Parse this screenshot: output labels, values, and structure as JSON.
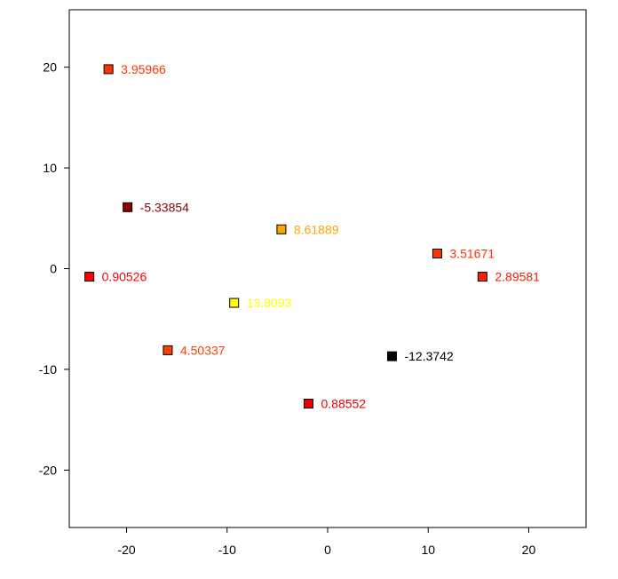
{
  "chart_data": {
    "type": "scatter",
    "title": "",
    "xlabel": "",
    "ylabel": "",
    "xlim": [
      -25.7,
      25.7
    ],
    "ylim": [
      -25.7,
      25.7
    ],
    "grid": false,
    "legend": "none",
    "x_ticks": [
      -20,
      -10,
      0,
      10,
      20
    ],
    "y_ticks": [
      20,
      10,
      0,
      -10,
      -20
    ],
    "x_tick_labels": [
      "-20",
      "-10",
      "0",
      "10",
      "20"
    ],
    "y_tick_labels": [
      "20",
      "10",
      "0",
      "-10",
      "-20"
    ],
    "points": [
      {
        "x": -21.8,
        "y": 19.8,
        "value": 3.95966,
        "label": "3.95966",
        "color": "#ff3300"
      },
      {
        "x": -19.9,
        "y": 6.1,
        "value": -5.33854,
        "label": "-5.33854",
        "color": "#8b0000"
      },
      {
        "x": -4.6,
        "y": 3.9,
        "value": 8.61889,
        "label": "8.61889",
        "color": "#ffa500"
      },
      {
        "x": 10.9,
        "y": 1.5,
        "value": 3.51671,
        "label": "3.51671",
        "color": "#ff3300"
      },
      {
        "x": 15.4,
        "y": -0.8,
        "value": 2.89581,
        "label": "2.89581",
        "color": "#ff1a00"
      },
      {
        "x": -23.7,
        "y": -0.8,
        "value": 0.90526,
        "label": "0.90526",
        "color": "#ff0000"
      },
      {
        "x": -9.3,
        "y": -3.4,
        "value": 13.8093,
        "label": "13.8093",
        "color": "#ffff00"
      },
      {
        "x": -15.9,
        "y": -8.1,
        "value": 4.50337,
        "label": "4.50337",
        "color": "#ff4000"
      },
      {
        "x": 6.4,
        "y": -8.7,
        "value": -12.3742,
        "label": "-12.3742",
        "color": "#000000"
      },
      {
        "x": -1.9,
        "y": -13.4,
        "value": 0.88552,
        "label": "0.88552",
        "color": "#ee0000"
      }
    ]
  }
}
